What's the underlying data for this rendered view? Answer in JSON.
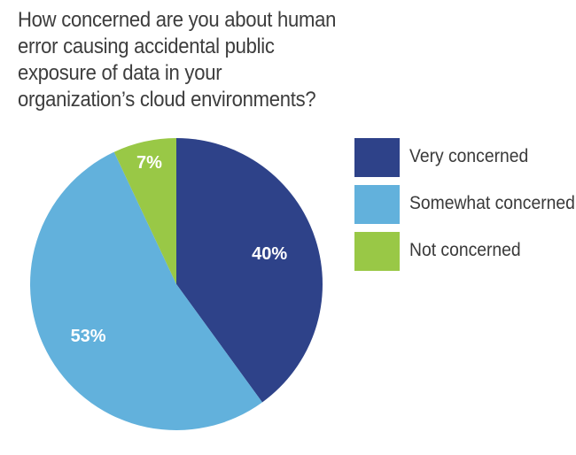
{
  "title_lines": [
    "How concerned are you about human",
    "error causing accidental public",
    "exposure of data in your",
    "organization’s cloud environments?"
  ],
  "chart_data": {
    "type": "pie",
    "title": "How concerned are you about human error causing accidental public exposure of data in your organization’s cloud environments?",
    "slices": [
      {
        "label": "Very concerned",
        "value": 40,
        "display": "40%",
        "color": "#2e4289",
        "label_color": "#ffffff"
      },
      {
        "label": "Somewhat concerned",
        "value": 53,
        "display": "53%",
        "color": "#62b1dc",
        "label_color": "#ffffff"
      },
      {
        "label": "Not concerned",
        "value": 7,
        "display": "7%",
        "color": "#99c846",
        "label_color": "#ffffff"
      }
    ],
    "start_angle": "12 o'clock",
    "direction": "clockwise",
    "legend_position": "right"
  }
}
